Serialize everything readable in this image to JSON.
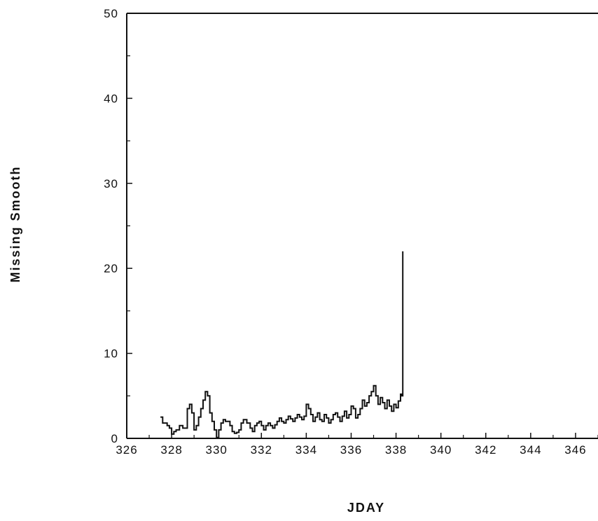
{
  "chart_data": {
    "type": "line",
    "xlabel": "JDAY",
    "ylabel": "Missing Smooth",
    "xlim": [
      326,
      347
    ],
    "ylim": [
      0,
      50
    ],
    "x_ticks": [
      "326",
      "328",
      "330",
      "332",
      "334",
      "336",
      "338",
      "340",
      "342",
      "344",
      "346"
    ],
    "y_ticks": [
      "0",
      "10",
      "20",
      "30",
      "40",
      "50"
    ],
    "grid": false,
    "colors": {
      "line": "#111111",
      "axis": "#111111"
    },
    "series": [
      {
        "x": [
          327.5,
          327.6,
          327.8,
          327.9,
          328.0,
          328.1,
          328.2,
          328.35,
          328.5,
          328.7,
          328.8,
          328.9,
          329.0,
          329.1,
          329.2,
          329.3,
          329.4,
          329.5,
          329.6,
          329.7,
          329.8,
          329.9,
          330.0,
          330.1,
          330.2,
          330.3,
          330.4,
          330.5,
          330.6,
          330.7,
          330.8,
          330.9,
          331.0,
          331.1,
          331.2,
          331.35,
          331.5,
          331.6,
          331.7,
          331.8,
          331.9,
          332.0,
          332.1,
          332.2,
          332.3,
          332.4,
          332.5,
          332.6,
          332.7,
          332.8,
          332.9,
          333.0,
          333.1,
          333.2,
          333.3,
          333.4,
          333.5,
          333.6,
          333.7,
          333.8,
          333.9,
          334.0,
          334.1,
          334.2,
          334.3,
          334.4,
          334.5,
          334.6,
          334.7,
          334.8,
          334.9,
          335.0,
          335.1,
          335.2,
          335.3,
          335.4,
          335.5,
          335.6,
          335.7,
          335.8,
          335.9,
          336.0,
          336.1,
          336.2,
          336.3,
          336.4,
          336.5,
          336.6,
          336.7,
          336.8,
          336.9,
          337.0,
          337.1,
          337.2,
          337.3,
          337.4,
          337.5,
          337.6,
          337.7,
          337.8,
          337.9,
          338.0,
          338.1,
          338.2,
          338.25,
          338.3
        ],
        "y": [
          2.5,
          1.8,
          1.5,
          1.2,
          0.5,
          0.8,
          1.0,
          1.5,
          1.2,
          3.5,
          4.0,
          3.0,
          1.0,
          1.5,
          2.5,
          3.5,
          4.5,
          5.5,
          5.0,
          3.0,
          2.0,
          1.0,
          0.1,
          1.0,
          1.8,
          2.2,
          2.0,
          2.0,
          1.5,
          0.8,
          0.6,
          0.7,
          1.0,
          1.8,
          2.2,
          1.8,
          1.2,
          0.8,
          1.5,
          1.8,
          2.0,
          1.5,
          1.0,
          1.5,
          1.8,
          1.5,
          1.2,
          1.6,
          2.0,
          2.4,
          2.0,
          1.8,
          2.2,
          2.6,
          2.3,
          2.0,
          2.4,
          2.8,
          2.5,
          2.2,
          2.6,
          4.0,
          3.5,
          2.8,
          2.0,
          2.5,
          3.0,
          2.2,
          2.0,
          2.8,
          2.4,
          1.8,
          2.2,
          2.8,
          3.0,
          2.5,
          2.0,
          2.6,
          3.2,
          2.4,
          2.8,
          3.8,
          3.5,
          2.4,
          2.8,
          3.5,
          4.5,
          3.8,
          4.2,
          5.0,
          5.5,
          6.2,
          5.0,
          4.0,
          4.8,
          4.2,
          3.5,
          4.5,
          3.8,
          3.2,
          4.0,
          3.6,
          4.4,
          5.2,
          5.0,
          22.0
        ]
      }
    ]
  }
}
